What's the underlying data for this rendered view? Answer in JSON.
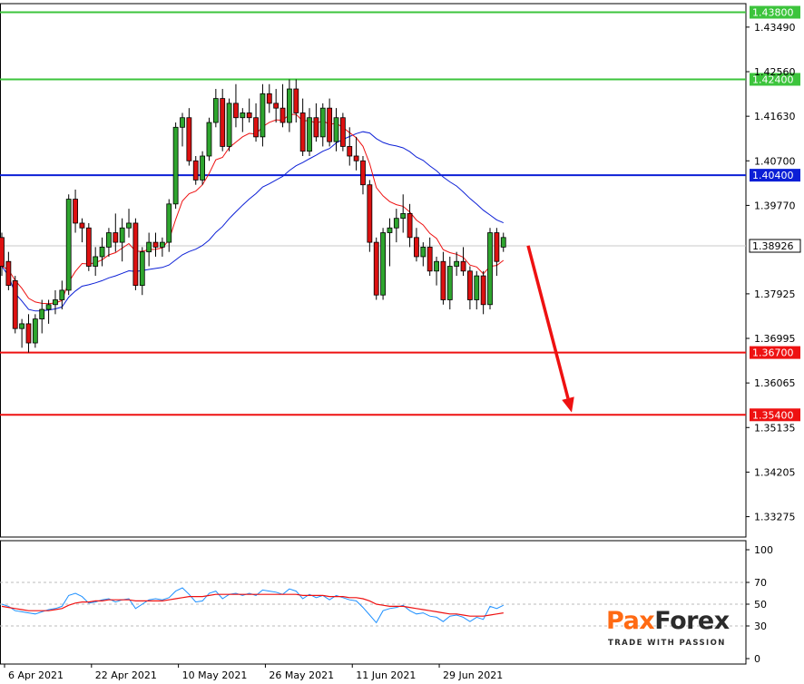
{
  "chart_data": [
    {
      "type": "candlestick",
      "symbol_context": "daily price chart",
      "y_ticks": [
        "1.43490",
        "1.42560",
        "1.41630",
        "1.40700",
        "1.39770",
        "1.38926",
        "1.37925",
        "1.36995",
        "1.36065",
        "1.35135",
        "1.34205",
        "1.33275"
      ],
      "x_ticks": [
        "6 Apr 2021",
        "22 Apr 2021",
        "10 May 2021",
        "26 May 2021",
        "11 Jun 2021",
        "29 Jun 2021"
      ],
      "ylim": [
        1.3285,
        1.4398
      ],
      "levels": [
        {
          "value": 1.438,
          "label": "1.43800",
          "color": "#3cc43c"
        },
        {
          "value": 1.424,
          "label": "1.42400",
          "color": "#3cc43c"
        },
        {
          "value": 1.404,
          "label": "1.40400",
          "color": "#0b1fd6"
        },
        {
          "value": 1.367,
          "label": "1.36700",
          "color": "#ee1111"
        },
        {
          "value": 1.354,
          "label": "1.35400",
          "color": "#ee1111"
        }
      ],
      "current_price": {
        "value": 1.38926,
        "label": "1.38926"
      },
      "candles": [
        [
          1.391,
          1.392,
          1.383,
          1.385
        ],
        [
          1.386,
          1.388,
          1.38,
          1.381
        ],
        [
          1.382,
          1.383,
          1.371,
          1.372
        ],
        [
          1.372,
          1.374,
          1.368,
          1.373
        ],
        [
          1.373,
          1.375,
          1.367,
          1.369
        ],
        [
          1.369,
          1.375,
          1.368,
          1.374
        ],
        [
          1.374,
          1.378,
          1.371,
          1.376
        ],
        [
          1.376,
          1.378,
          1.373,
          1.377
        ],
        [
          1.377,
          1.38,
          1.375,
          1.378
        ],
        [
          1.378,
          1.382,
          1.376,
          1.38
        ],
        [
          1.38,
          1.4,
          1.379,
          1.399
        ],
        [
          1.399,
          1.401,
          1.392,
          1.394
        ],
        [
          1.394,
          1.395,
          1.39,
          1.393
        ],
        [
          1.393,
          1.394,
          1.384,
          1.385
        ],
        [
          1.385,
          1.389,
          1.383,
          1.387
        ],
        [
          1.387,
          1.391,
          1.385,
          1.389
        ],
        [
          1.389,
          1.393,
          1.387,
          1.392
        ],
        [
          1.392,
          1.396,
          1.388,
          1.39
        ],
        [
          1.39,
          1.395,
          1.386,
          1.393
        ],
        [
          1.393,
          1.397,
          1.391,
          1.394
        ],
        [
          1.394,
          1.395,
          1.38,
          1.381
        ],
        [
          1.381,
          1.389,
          1.379,
          1.388
        ],
        [
          1.388,
          1.392,
          1.385,
          1.39
        ],
        [
          1.39,
          1.392,
          1.387,
          1.389
        ],
        [
          1.389,
          1.391,
          1.387,
          1.39
        ],
        [
          1.39,
          1.399,
          1.388,
          1.398
        ],
        [
          1.398,
          1.415,
          1.397,
          1.414
        ],
        [
          1.414,
          1.417,
          1.41,
          1.416
        ],
        [
          1.416,
          1.418,
          1.406,
          1.407
        ],
        [
          1.407,
          1.408,
          1.402,
          1.403
        ],
        [
          1.403,
          1.409,
          1.402,
          1.408
        ],
        [
          1.408,
          1.416,
          1.407,
          1.415
        ],
        [
          1.415,
          1.422,
          1.414,
          1.42
        ],
        [
          1.42,
          1.422,
          1.409,
          1.41
        ],
        [
          1.41,
          1.42,
          1.409,
          1.419
        ],
        [
          1.419,
          1.423,
          1.414,
          1.416
        ],
        [
          1.416,
          1.418,
          1.413,
          1.417
        ],
        [
          1.417,
          1.42,
          1.415,
          1.416
        ],
        [
          1.416,
          1.419,
          1.411,
          1.412
        ],
        [
          1.412,
          1.423,
          1.41,
          1.421
        ],
        [
          1.421,
          1.423,
          1.417,
          1.419
        ],
        [
          1.419,
          1.422,
          1.415,
          1.418
        ],
        [
          1.418,
          1.423,
          1.414,
          1.415
        ],
        [
          1.415,
          1.424,
          1.413,
          1.422
        ],
        [
          1.422,
          1.424,
          1.415,
          1.417
        ],
        [
          1.417,
          1.42,
          1.408,
          1.409
        ],
        [
          1.409,
          1.418,
          1.408,
          1.416
        ],
        [
          1.416,
          1.419,
          1.411,
          1.412
        ],
        [
          1.412,
          1.419,
          1.41,
          1.418
        ],
        [
          1.418,
          1.42,
          1.41,
          1.411
        ],
        [
          1.411,
          1.418,
          1.409,
          1.416
        ],
        [
          1.416,
          1.417,
          1.409,
          1.41
        ],
        [
          1.41,
          1.414,
          1.406,
          1.408
        ],
        [
          1.408,
          1.412,
          1.405,
          1.407
        ],
        [
          1.407,
          1.408,
          1.4,
          1.402
        ],
        [
          1.402,
          1.403,
          1.388,
          1.39
        ],
        [
          1.39,
          1.391,
          1.378,
          1.379
        ],
        [
          1.379,
          1.393,
          1.378,
          1.392
        ],
        [
          1.392,
          1.395,
          1.385,
          1.393
        ],
        [
          1.393,
          1.397,
          1.39,
          1.395
        ],
        [
          1.395,
          1.4,
          1.392,
          1.396
        ],
        [
          1.396,
          1.398,
          1.389,
          1.391
        ],
        [
          1.391,
          1.393,
          1.386,
          1.387
        ],
        [
          1.387,
          1.39,
          1.385,
          1.389
        ],
        [
          1.389,
          1.391,
          1.383,
          1.384
        ],
        [
          1.384,
          1.387,
          1.381,
          1.386
        ],
        [
          1.386,
          1.388,
          1.377,
          1.378
        ],
        [
          1.378,
          1.387,
          1.376,
          1.385
        ],
        [
          1.385,
          1.388,
          1.383,
          1.386
        ],
        [
          1.386,
          1.389,
          1.383,
          1.384
        ],
        [
          1.384,
          1.385,
          1.376,
          1.378
        ],
        [
          1.378,
          1.384,
          1.376,
          1.383
        ],
        [
          1.383,
          1.384,
          1.375,
          1.377
        ],
        [
          1.377,
          1.393,
          1.376,
          1.392
        ],
        [
          1.392,
          1.393,
          1.383,
          1.386
        ],
        [
          1.389,
          1.392,
          1.388,
          1.391
        ]
      ],
      "forecast_arrow": {
        "from": 1.3893,
        "to": 1.3545,
        "color": "#ee1111"
      },
      "oscillator": {
        "y_ticks": [
          "100",
          "70",
          "50",
          "30",
          "0"
        ],
        "ylim": [
          0,
          100
        ],
        "dashed_levels": [
          70,
          50,
          30
        ],
        "fast": [
          50,
          48,
          44,
          43,
          42,
          41,
          43,
          45,
          46,
          48,
          58,
          60,
          57,
          51,
          52,
          54,
          55,
          52,
          54,
          55,
          46,
          50,
          54,
          55,
          54,
          56,
          62,
          65,
          59,
          52,
          53,
          60,
          62,
          55,
          59,
          60,
          58,
          60,
          58,
          63,
          62,
          61,
          59,
          64,
          62,
          55,
          59,
          56,
          58,
          54,
          58,
          56,
          54,
          53,
          47,
          40,
          33,
          44,
          46,
          47,
          49,
          44,
          41,
          42,
          39,
          38,
          34,
          39,
          40,
          38,
          34,
          38,
          36,
          48,
          46,
          49
        ],
        "slow": [
          48,
          47,
          46,
          45,
          44,
          44,
          44,
          44,
          45,
          46,
          49,
          51,
          52,
          52,
          53,
          53,
          54,
          54,
          54,
          54,
          53,
          53,
          53,
          53,
          53,
          54,
          55,
          56,
          57,
          57,
          57,
          58,
          59,
          59,
          59,
          59,
          59,
          59,
          59,
          59,
          59,
          59,
          59,
          59,
          59,
          58,
          58,
          58,
          58,
          57,
          57,
          57,
          56,
          56,
          55,
          53,
          50,
          49,
          48,
          48,
          48,
          47,
          46,
          45,
          44,
          43,
          42,
          41,
          41,
          40,
          39,
          39,
          39,
          40,
          41,
          42
        ],
        "fast_color": "#1e90ff",
        "slow_color": "#ee1111"
      }
    }
  ],
  "logo": {
    "brand_prefix": "Pa",
    "brand_mark": "x",
    "brand_suffix": "Forex",
    "tagline": "TRADE WITH PASSION"
  }
}
